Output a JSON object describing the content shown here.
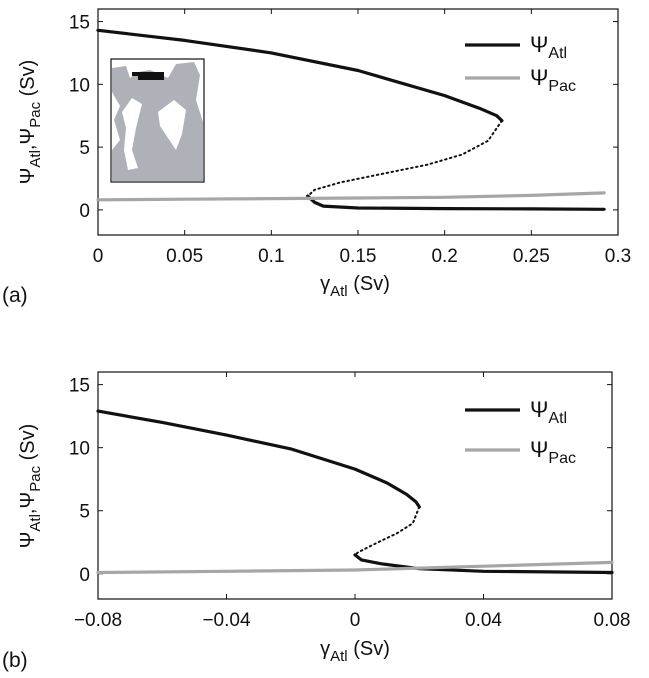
{
  "chart_data": [
    {
      "panel": "(a)",
      "type": "line",
      "xlabel": {
        "symbol": "γ",
        "sub": "Atl",
        "unit": "(Sv)"
      },
      "ylabel": {
        "sym1": "Ψ",
        "sub1": "Atl",
        "sep": ",",
        "sym2": "Ψ",
        "sub2": "Pac",
        "unit": "(Sv)"
      },
      "xlim": [
        0,
        0.3
      ],
      "ylim": [
        -2,
        16
      ],
      "xticks": [
        0,
        0.05,
        0.1,
        0.15,
        0.2,
        0.25,
        0.3
      ],
      "xtick_labels": [
        "0",
        "0.05",
        "0.1",
        "0.15",
        "0.2",
        "0.25",
        "0.3"
      ],
      "yticks": [
        0,
        5,
        10,
        15
      ],
      "ytick_labels": [
        "0",
        "5",
        "10",
        "15"
      ],
      "legend_position": "top-right",
      "has_inset_map": true,
      "series": [
        {
          "name": "Atl",
          "color": "#111111",
          "style": "solid",
          "x": [
            0,
            0.05,
            0.1,
            0.15,
            0.2,
            0.22,
            0.23,
            0.233
          ],
          "y": [
            14.3,
            13.5,
            12.5,
            11.1,
            9.1,
            8.1,
            7.5,
            7.1
          ]
        },
        {
          "name": "",
          "color": "#111111",
          "style": "dotted",
          "x": [
            0.233,
            0.225,
            0.21,
            0.19,
            0.165,
            0.14,
            0.125,
            0.121
          ],
          "y": [
            7.1,
            5.5,
            4.4,
            3.6,
            2.9,
            2.2,
            1.6,
            1.1
          ]
        },
        {
          "name": "",
          "color": "#111111",
          "style": "solid",
          "x": [
            0.121,
            0.125,
            0.13,
            0.15,
            0.2,
            0.25,
            0.292
          ],
          "y": [
            1.1,
            0.6,
            0.3,
            0.15,
            0.1,
            0.08,
            0.05
          ]
        },
        {
          "name": "Pac",
          "color": "#a6a6a6",
          "style": "solid",
          "x": [
            0,
            0.05,
            0.1,
            0.15,
            0.2,
            0.25,
            0.292
          ],
          "y": [
            0.8,
            0.85,
            0.9,
            0.95,
            1.0,
            1.15,
            1.35
          ]
        }
      ]
    },
    {
      "panel": "(b)",
      "type": "line",
      "xlabel": {
        "symbol": "γ",
        "sub": "Atl",
        "unit": "(Sv)"
      },
      "ylabel": {
        "sym1": "Ψ",
        "sub1": "Atl",
        "sep": ",",
        "sym2": "Ψ",
        "sub2": "Pac",
        "unit": "(Sv)"
      },
      "xlim": [
        -0.08,
        0.08
      ],
      "ylim": [
        -2,
        16
      ],
      "xticks": [
        -0.08,
        -0.04,
        0,
        0.04,
        0.08
      ],
      "xtick_labels": [
        "−0.08",
        "−0.04",
        "0",
        "0.04",
        "0.08"
      ],
      "yticks": [
        0,
        5,
        10,
        15
      ],
      "ytick_labels": [
        "0",
        "5",
        "10",
        "15"
      ],
      "legend_position": "top-right",
      "has_inset_map": false,
      "series": [
        {
          "name": "Atl",
          "color": "#111111",
          "style": "solid",
          "x": [
            -0.08,
            -0.06,
            -0.04,
            -0.02,
            0,
            0.01,
            0.016,
            0.019,
            0.02
          ],
          "y": [
            12.9,
            12.0,
            11.0,
            9.9,
            8.3,
            7.2,
            6.3,
            5.7,
            5.3
          ]
        },
        {
          "name": "",
          "color": "#111111",
          "style": "dotted",
          "x": [
            0.02,
            0.018,
            0.013,
            0.008,
            0.004,
            0.001,
            0
          ],
          "y": [
            5.3,
            4.0,
            3.2,
            2.6,
            2.1,
            1.7,
            1.5
          ]
        },
        {
          "name": "",
          "color": "#111111",
          "style": "solid",
          "x": [
            0,
            0.002,
            0.008,
            0.02,
            0.04,
            0.06,
            0.08
          ],
          "y": [
            1.5,
            1.1,
            0.8,
            0.4,
            0.2,
            0.15,
            0.1
          ]
        },
        {
          "name": "Pac",
          "color": "#a6a6a6",
          "style": "solid",
          "x": [
            -0.08,
            -0.04,
            0,
            0.04,
            0.08
          ],
          "y": [
            0.1,
            0.2,
            0.3,
            0.6,
            0.9
          ]
        }
      ]
    }
  ]
}
